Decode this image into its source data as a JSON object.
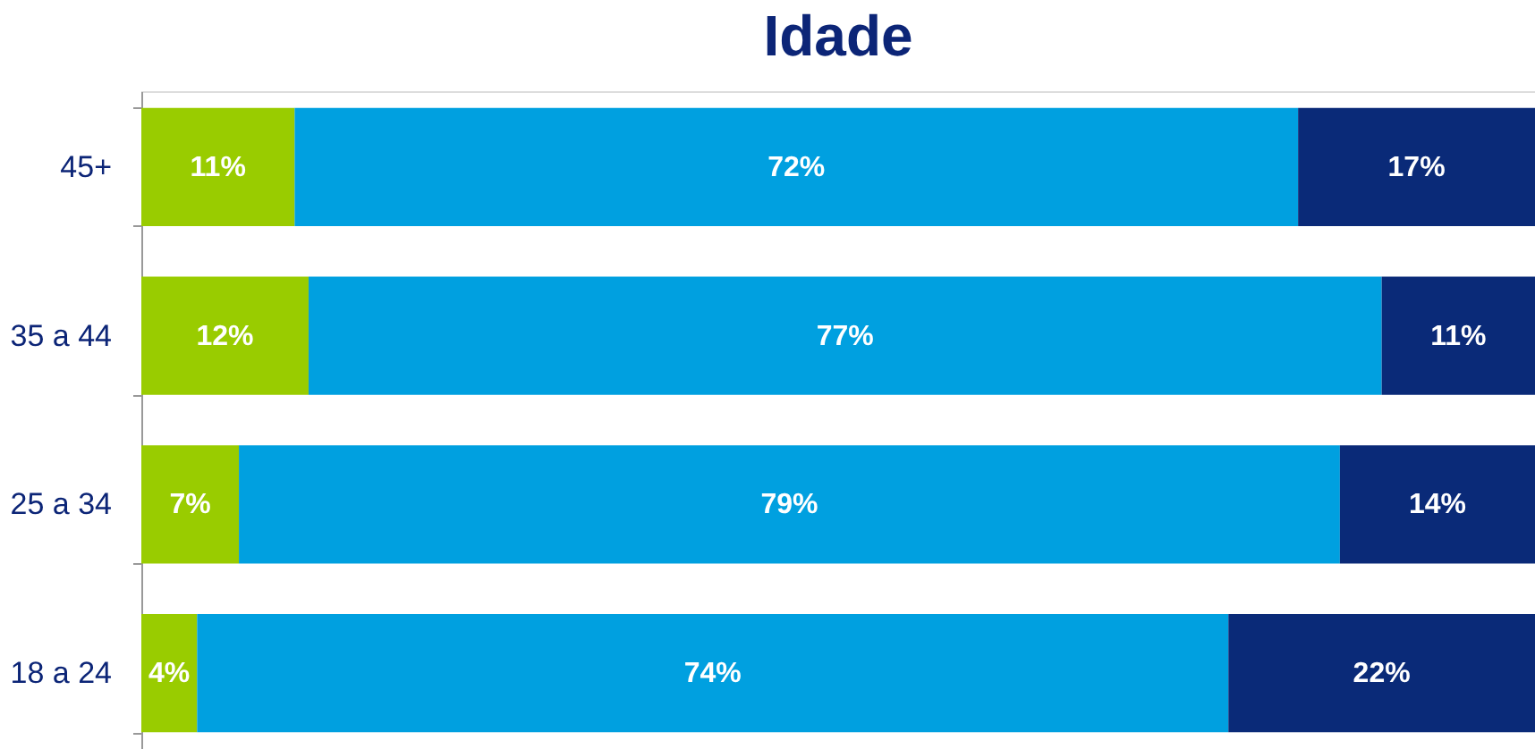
{
  "chart_data": {
    "type": "bar",
    "title": "Idade",
    "orientation": "horizontal",
    "stacked": true,
    "categories": [
      "45+",
      "35 a 44",
      "25 a 34",
      "18 a 24"
    ],
    "series": [
      {
        "color": "#99cc00",
        "values": [
          11,
          12,
          7,
          4
        ],
        "value_labels": [
          "11%",
          "12%",
          "7%",
          "4%"
        ]
      },
      {
        "color": "#00a0e0",
        "values": [
          72,
          77,
          79,
          74
        ],
        "value_labels": [
          "72%",
          "77%",
          "79%",
          "74%"
        ]
      },
      {
        "color": "#0a2a78",
        "values": [
          17,
          11,
          14,
          22
        ],
        "value_labels": [
          "17%",
          "11%",
          "14%",
          "22%"
        ]
      }
    ],
    "tick_labels": "y",
    "grid": false
  }
}
